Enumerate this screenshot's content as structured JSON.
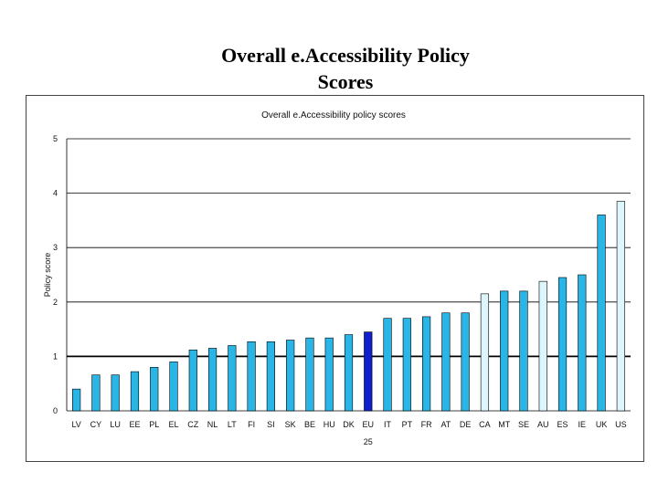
{
  "slide": {
    "title_line1": "Overall e.Accessibility Policy",
    "title_line2": "Scores"
  },
  "colors": {
    "bar_default": "#29b6e6",
    "bar_eu": "#1020cc",
    "bar_nonEU": "#ddf6fc",
    "bar_stroke": "#000000"
  },
  "chart_data": {
    "type": "bar",
    "title": "Overall e.Accessibility policy scores",
    "ylabel": "Policy score",
    "xlabel": "",
    "ylim": [
      0,
      5
    ],
    "yticks": [
      "0",
      "1",
      "2",
      "3",
      "4",
      "5"
    ],
    "grid": true,
    "reference_line": 1,
    "categories": [
      "LV",
      "CY",
      "LU",
      "EE",
      "PL",
      "EL",
      "CZ",
      "NL",
      "LT",
      "FI",
      "SI",
      "SK",
      "BE",
      "HU",
      "DK",
      "EU",
      "IT",
      "PT",
      "FR",
      "AT",
      "DE",
      "CA",
      "MT",
      "SE",
      "AU",
      "ES",
      "IE",
      "UK",
      "US"
    ],
    "eu_sublabel": "25",
    "values": [
      0.4,
      0.66,
      0.66,
      0.72,
      0.8,
      0.9,
      1.12,
      1.15,
      1.2,
      1.27,
      1.27,
      1.3,
      1.34,
      1.34,
      1.4,
      1.45,
      1.7,
      1.7,
      1.73,
      1.8,
      1.8,
      2.15,
      2.2,
      2.2,
      2.38,
      2.45,
      2.5,
      3.6,
      3.85
    ],
    "bar_groups": [
      "eu",
      "eu",
      "eu",
      "eu",
      "eu",
      "eu",
      "eu",
      "eu",
      "eu",
      "eu",
      "eu",
      "eu",
      "eu",
      "eu",
      "eu",
      "avg",
      "eu",
      "eu",
      "eu",
      "eu",
      "eu",
      "non",
      "eu",
      "eu",
      "non",
      "eu",
      "eu",
      "eu",
      "non"
    ]
  }
}
